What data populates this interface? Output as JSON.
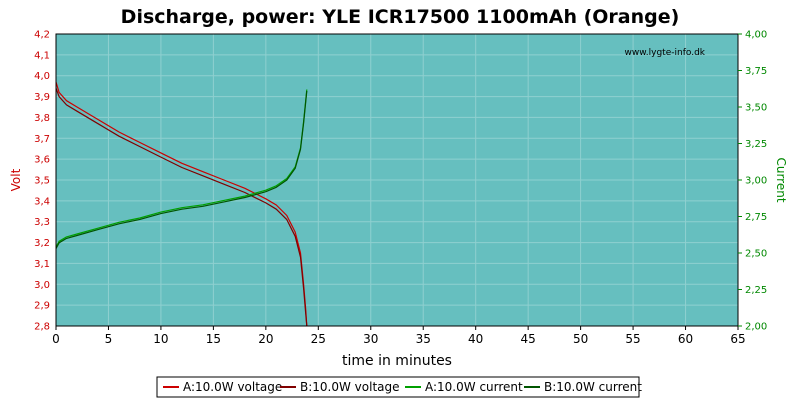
{
  "chart_data": {
    "type": "line",
    "title": "Discharge, power: YLE ICR17500 1100mAh (Orange)",
    "watermark": "www.lygte-info.dk",
    "xlabel": "time in minutes",
    "ylabel_left": "Volt",
    "ylabel_right": "Current",
    "xlim": [
      0,
      65
    ],
    "ylim_left": [
      2.8,
      4.2
    ],
    "ylim_right": [
      2.0,
      4.0
    ],
    "xticks": [
      "0",
      "5",
      "10",
      "15",
      "20",
      "25",
      "30",
      "35",
      "40",
      "45",
      "50",
      "55",
      "60",
      "65"
    ],
    "yticks_left": [
      "2,8",
      "2,9",
      "3,0",
      "3,1",
      "3,2",
      "3,3",
      "3,4",
      "3,5",
      "3,6",
      "3,7",
      "3,8",
      "3,9",
      "4,0",
      "4,1",
      "4,2"
    ],
    "yticks_right": [
      "2,00",
      "2,25",
      "2,50",
      "2,75",
      "3,00",
      "3,25",
      "3,50",
      "3,75",
      "4,00"
    ],
    "grid": true,
    "legend_position": "bottom",
    "colors": {
      "plot_bg": "#66bfbf",
      "grid": "#8fd0d0",
      "voltage_a": "#cc0000",
      "voltage_b": "#800000",
      "current_a": "#00a000",
      "current_b": "#005500"
    },
    "series": [
      {
        "name": "A:10.0W voltage",
        "axis": "left",
        "color": "#cc0000",
        "x": [
          0,
          0.3,
          1,
          2,
          4,
          6,
          8,
          10,
          12,
          14,
          16,
          18,
          20,
          21,
          22,
          22.8,
          23.3,
          23.6,
          23.8,
          23.9
        ],
        "y": [
          3.97,
          3.92,
          3.88,
          3.85,
          3.79,
          3.73,
          3.68,
          3.63,
          3.58,
          3.54,
          3.5,
          3.46,
          3.41,
          3.38,
          3.33,
          3.25,
          3.15,
          3.0,
          2.88,
          2.8
        ]
      },
      {
        "name": "B:10.0W voltage",
        "axis": "left",
        "color": "#800000",
        "x": [
          0,
          0.3,
          1,
          2,
          4,
          6,
          8,
          10,
          12,
          14,
          16,
          18,
          20,
          21,
          22,
          22.8,
          23.3,
          23.6,
          23.8,
          23.9
        ],
        "y": [
          3.94,
          3.9,
          3.86,
          3.83,
          3.77,
          3.71,
          3.66,
          3.61,
          3.56,
          3.52,
          3.48,
          3.44,
          3.39,
          3.36,
          3.31,
          3.23,
          3.13,
          2.98,
          2.86,
          2.8
        ]
      },
      {
        "name": "A:10.0W current",
        "axis": "right",
        "color": "#00a000",
        "x": [
          0,
          0.3,
          1,
          2,
          4,
          6,
          8,
          10,
          12,
          14,
          16,
          18,
          20,
          21,
          22,
          22.8,
          23.3,
          23.6,
          23.9
        ],
        "y": [
          2.54,
          2.58,
          2.61,
          2.63,
          2.67,
          2.71,
          2.74,
          2.78,
          2.81,
          2.83,
          2.86,
          2.89,
          2.93,
          2.96,
          3.01,
          3.09,
          3.22,
          3.4,
          3.62
        ]
      },
      {
        "name": "B:10.0W current",
        "axis": "right",
        "color": "#005500",
        "x": [
          0,
          0.3,
          1,
          2,
          4,
          6,
          8,
          10,
          12,
          14,
          16,
          18,
          20,
          21,
          22,
          22.8,
          23.3,
          23.6,
          23.9
        ],
        "y": [
          2.53,
          2.57,
          2.6,
          2.62,
          2.66,
          2.7,
          2.73,
          2.77,
          2.8,
          2.82,
          2.85,
          2.88,
          2.92,
          2.95,
          3.0,
          3.08,
          3.21,
          3.39,
          3.61
        ]
      }
    ]
  }
}
